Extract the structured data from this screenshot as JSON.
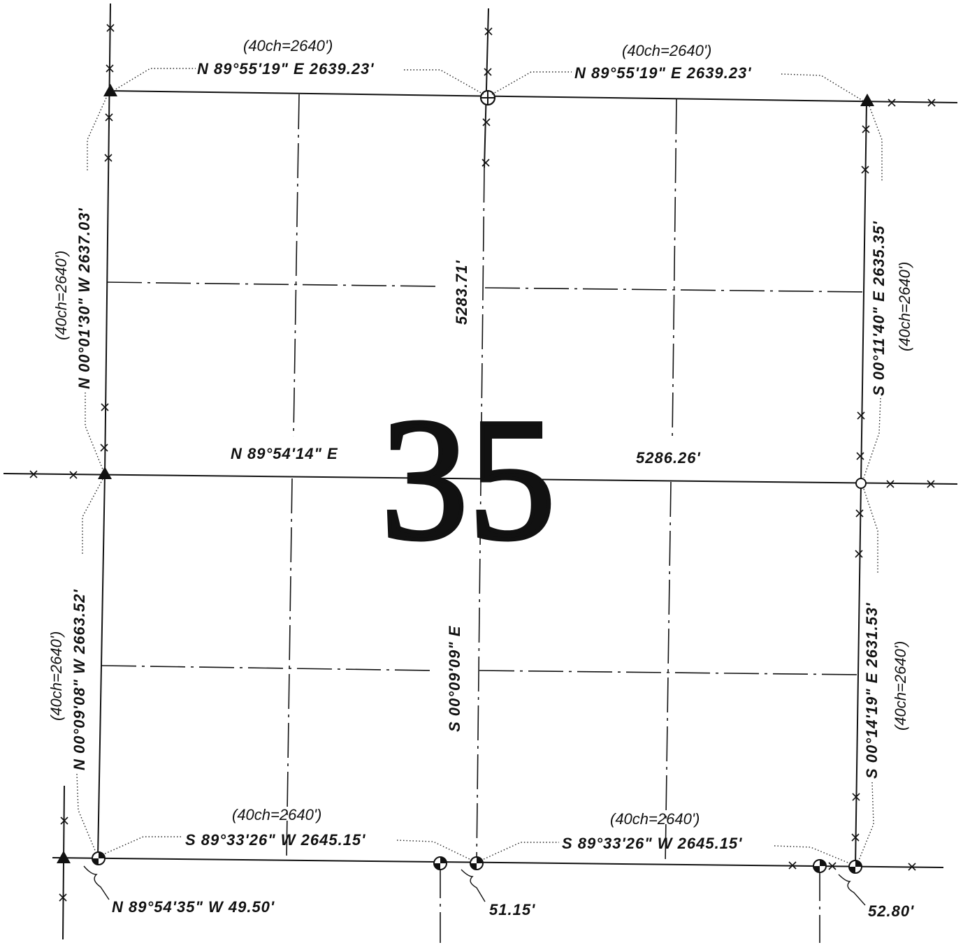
{
  "section": {
    "number": "35"
  },
  "labels": {
    "north_left_chain": "(40ch=2640')",
    "north_left_bearing": "N 89°55'19\" E 2639.23'",
    "north_right_chain": "(40ch=2640')",
    "north_right_bearing": "N 89°55'19\" E 2639.23'",
    "west_upper_chain": "(40ch=2640')",
    "west_upper_bearing": "N 00°01'30\" W 2637.03'",
    "east_upper_bearing": "S 00°11'40\" E 2635.35'",
    "east_upper_chain": "(40ch=2640')",
    "center_vertical_upper": "5283.71'",
    "center_vertical_lower": "S 00°09'09\" E",
    "center_horizontal_left": "N 89°54'14\" E",
    "center_horizontal_right": "5286.26'",
    "west_lower_chain": "(40ch=2640')",
    "west_lower_bearing": "N 00°09'08\" W 2663.52'",
    "east_lower_bearing": "S 00°14'19\" E 2631.53'",
    "east_lower_chain": "(40ch=2640')",
    "south_left_chain": "(40ch=2640')",
    "south_left_bearing": "S 89°33'26\" W 2645.15'",
    "south_right_chain": "(40ch=2640')",
    "south_right_bearing": "S 89°33'26\" W 2645.15'",
    "sw_offset": "N 89°54'35\" W 49.50'",
    "south_center_offset": "51.15'",
    "se_offset": "52.80'"
  },
  "symbols": {
    "nw_corner": "triangle-marker-icon",
    "n_quarter": "circle-cross-marker-icon",
    "ne_corner": "triangle-marker-icon",
    "w_quarter": "triangle-marker-icon",
    "e_quarter": "open-circle-marker-icon",
    "sw_corner": "quartered-circle-marker-icon",
    "s_quarter": "quartered-circle-marker-icon",
    "se_corner": "quartered-circle-marker-icon"
  },
  "colors": {
    "ink": "#111111",
    "paper": "#ffffff"
  }
}
